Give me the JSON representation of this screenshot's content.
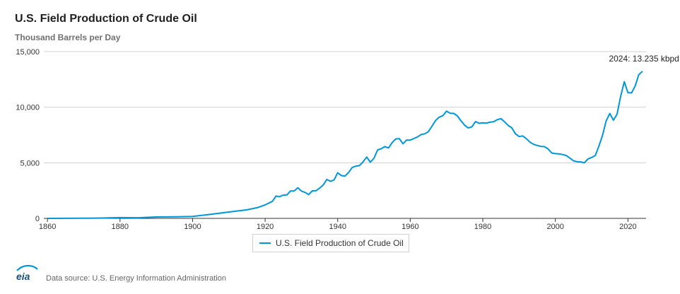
{
  "header": {
    "title": "U.S. Field Production of Crude Oil",
    "subtitle": "Thousand Barrels per Day"
  },
  "legend": {
    "label": "U.S. Field Production of Crude Oil"
  },
  "footer": {
    "logo_text": "eia",
    "source": "Data source: U.S. Energy Information Administration"
  },
  "colors": {
    "series": "#0096d7",
    "grid": "#d0d0d0",
    "axis_text": "#333333"
  },
  "chart_data": {
    "type": "line",
    "title": "U.S. Field Production of Crude Oil",
    "subtitle": "Thousand Barrels per Day",
    "xlabel": "",
    "ylabel": "",
    "xlim": [
      1859,
      2025
    ],
    "ylim": [
      0,
      15000
    ],
    "x_ticks": [
      1860,
      1880,
      1900,
      1920,
      1940,
      1960,
      1980,
      2000,
      2020
    ],
    "y_ticks": [
      0,
      5000,
      10000,
      15000
    ],
    "y_tick_labels": [
      "0",
      "5,000",
      "10,000",
      "15,000"
    ],
    "grid": "horizontal",
    "legend_position": "bottom-center",
    "annotation": {
      "x": 2024,
      "y": 13235,
      "text": "2024: 13.235 kbpd"
    },
    "series": [
      {
        "name": "U.S. Field Production of Crude Oil",
        "x": [
          1860,
          1865,
          1870,
          1875,
          1880,
          1885,
          1890,
          1895,
          1900,
          1905,
          1910,
          1915,
          1918,
          1920,
          1922,
          1923,
          1924,
          1925,
          1926,
          1927,
          1928,
          1929,
          1930,
          1931,
          1932,
          1933,
          1934,
          1935,
          1936,
          1937,
          1938,
          1939,
          1940,
          1941,
          1942,
          1943,
          1944,
          1945,
          1946,
          1947,
          1948,
          1949,
          1950,
          1951,
          1952,
          1953,
          1954,
          1955,
          1956,
          1957,
          1958,
          1959,
          1960,
          1961,
          1962,
          1963,
          1964,
          1965,
          1966,
          1967,
          1968,
          1969,
          1970,
          1971,
          1972,
          1973,
          1974,
          1975,
          1976,
          1977,
          1978,
          1979,
          1980,
          1981,
          1982,
          1983,
          1984,
          1985,
          1986,
          1987,
          1988,
          1989,
          1990,
          1991,
          1992,
          1993,
          1994,
          1995,
          1996,
          1997,
          1998,
          1999,
          2000,
          2001,
          2002,
          2003,
          2004,
          2005,
          2006,
          2007,
          2008,
          2009,
          2010,
          2011,
          2012,
          2013,
          2014,
          2015,
          2016,
          2017,
          2018,
          2019,
          2020,
          2021,
          2022,
          2023,
          2024
        ],
        "values": [
          1,
          7,
          15,
          33,
          72,
          60,
          126,
          145,
          174,
          369,
          574,
          770,
          978,
          1214,
          1531,
          2007,
          1951,
          2098,
          2109,
          2469,
          2469,
          2761,
          2460,
          2332,
          2145,
          2481,
          2488,
          2720,
          3000,
          3500,
          3330,
          3460,
          4107,
          3850,
          3800,
          4120,
          4580,
          4700,
          4750,
          5090,
          5520,
          5050,
          5410,
          6160,
          6260,
          6460,
          6340,
          6810,
          7150,
          7170,
          6710,
          7050,
          7040,
          7180,
          7330,
          7540,
          7610,
          7800,
          8300,
          8810,
          9100,
          9240,
          9640,
          9460,
          9440,
          9210,
          8770,
          8370,
          8130,
          8240,
          8710,
          8550,
          8600,
          8570,
          8650,
          8690,
          8880,
          8970,
          8680,
          8350,
          8140,
          7610,
          7360,
          7420,
          7170,
          6850,
          6660,
          6560,
          6470,
          6450,
          6250,
          5880,
          5820,
          5800,
          5740,
          5650,
          5420,
          5180,
          5090,
          5080,
          5000,
          5350,
          5480,
          5650,
          6500,
          7470,
          8760,
          9430,
          8830,
          9360,
          10990,
          12290,
          11310,
          11280,
          11910,
          12930,
          13235
        ]
      }
    ]
  }
}
